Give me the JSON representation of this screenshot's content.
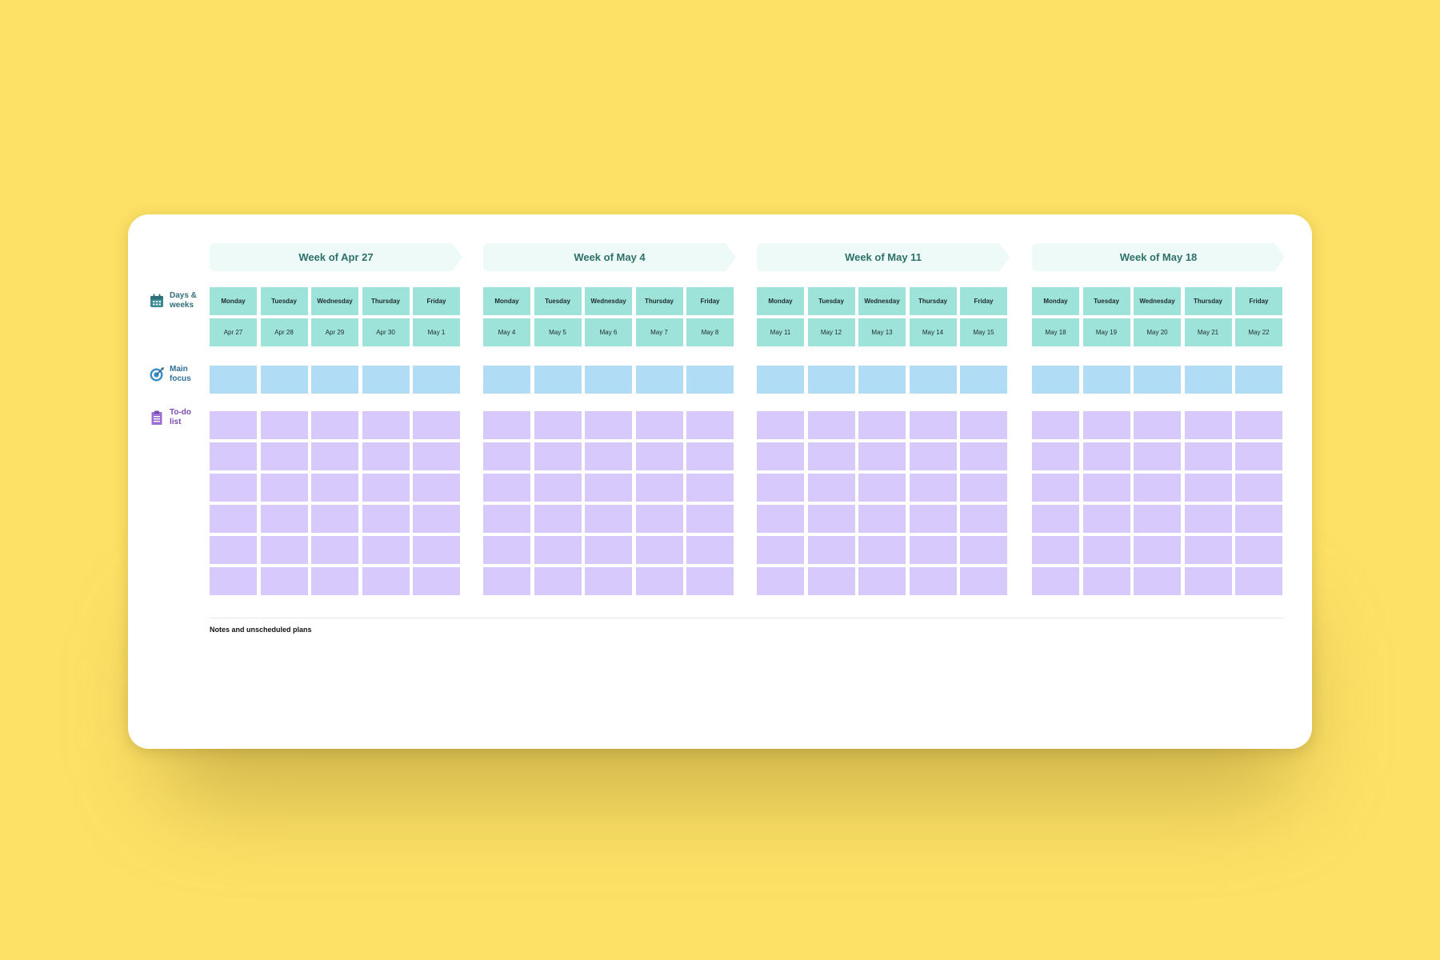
{
  "labels": {
    "days_weeks": "Days & weeks",
    "main_focus": "Main focus",
    "todo_list": "To-do list"
  },
  "notes_label": "Notes and unscheduled plans",
  "icons": {
    "days_weeks": "calendar-icon",
    "main_focus": "target-icon",
    "todo_list": "clipboard-icon"
  },
  "colors": {
    "background": "#fce166",
    "day_cell": "#9ee3d9",
    "focus_cell": "#b0dcf6",
    "todo_cell": "#d7c9fb",
    "week_header": "#eefaf7",
    "week_header_text": "#2e7069"
  },
  "todo_rows_per_day": 6,
  "weeks": [
    {
      "title": "Week of Apr 27",
      "days": [
        "Monday",
        "Tuesday",
        "Wednesday",
        "Thursday",
        "Friday"
      ],
      "dates": [
        "Apr 27",
        "Apr 28",
        "Apr 29",
        "Apr 30",
        "May 1"
      ]
    },
    {
      "title": "Week of May 4",
      "days": [
        "Monday",
        "Tuesday",
        "Wednesday",
        "Thursday",
        "Friday"
      ],
      "dates": [
        "May 4",
        "May 5",
        "May 6",
        "May 7",
        "May 8"
      ]
    },
    {
      "title": "Week of May 11",
      "days": [
        "Monday",
        "Tuesday",
        "Wednesday",
        "Thursday",
        "Friday"
      ],
      "dates": [
        "May 11",
        "May 12",
        "May 13",
        "May 14",
        "May 15"
      ]
    },
    {
      "title": "Week of May 18",
      "days": [
        "Monday",
        "Tuesday",
        "Wednesday",
        "Thursday",
        "Friday"
      ],
      "dates": [
        "May 18",
        "May 19",
        "May 20",
        "May 21",
        "May 22"
      ]
    }
  ]
}
